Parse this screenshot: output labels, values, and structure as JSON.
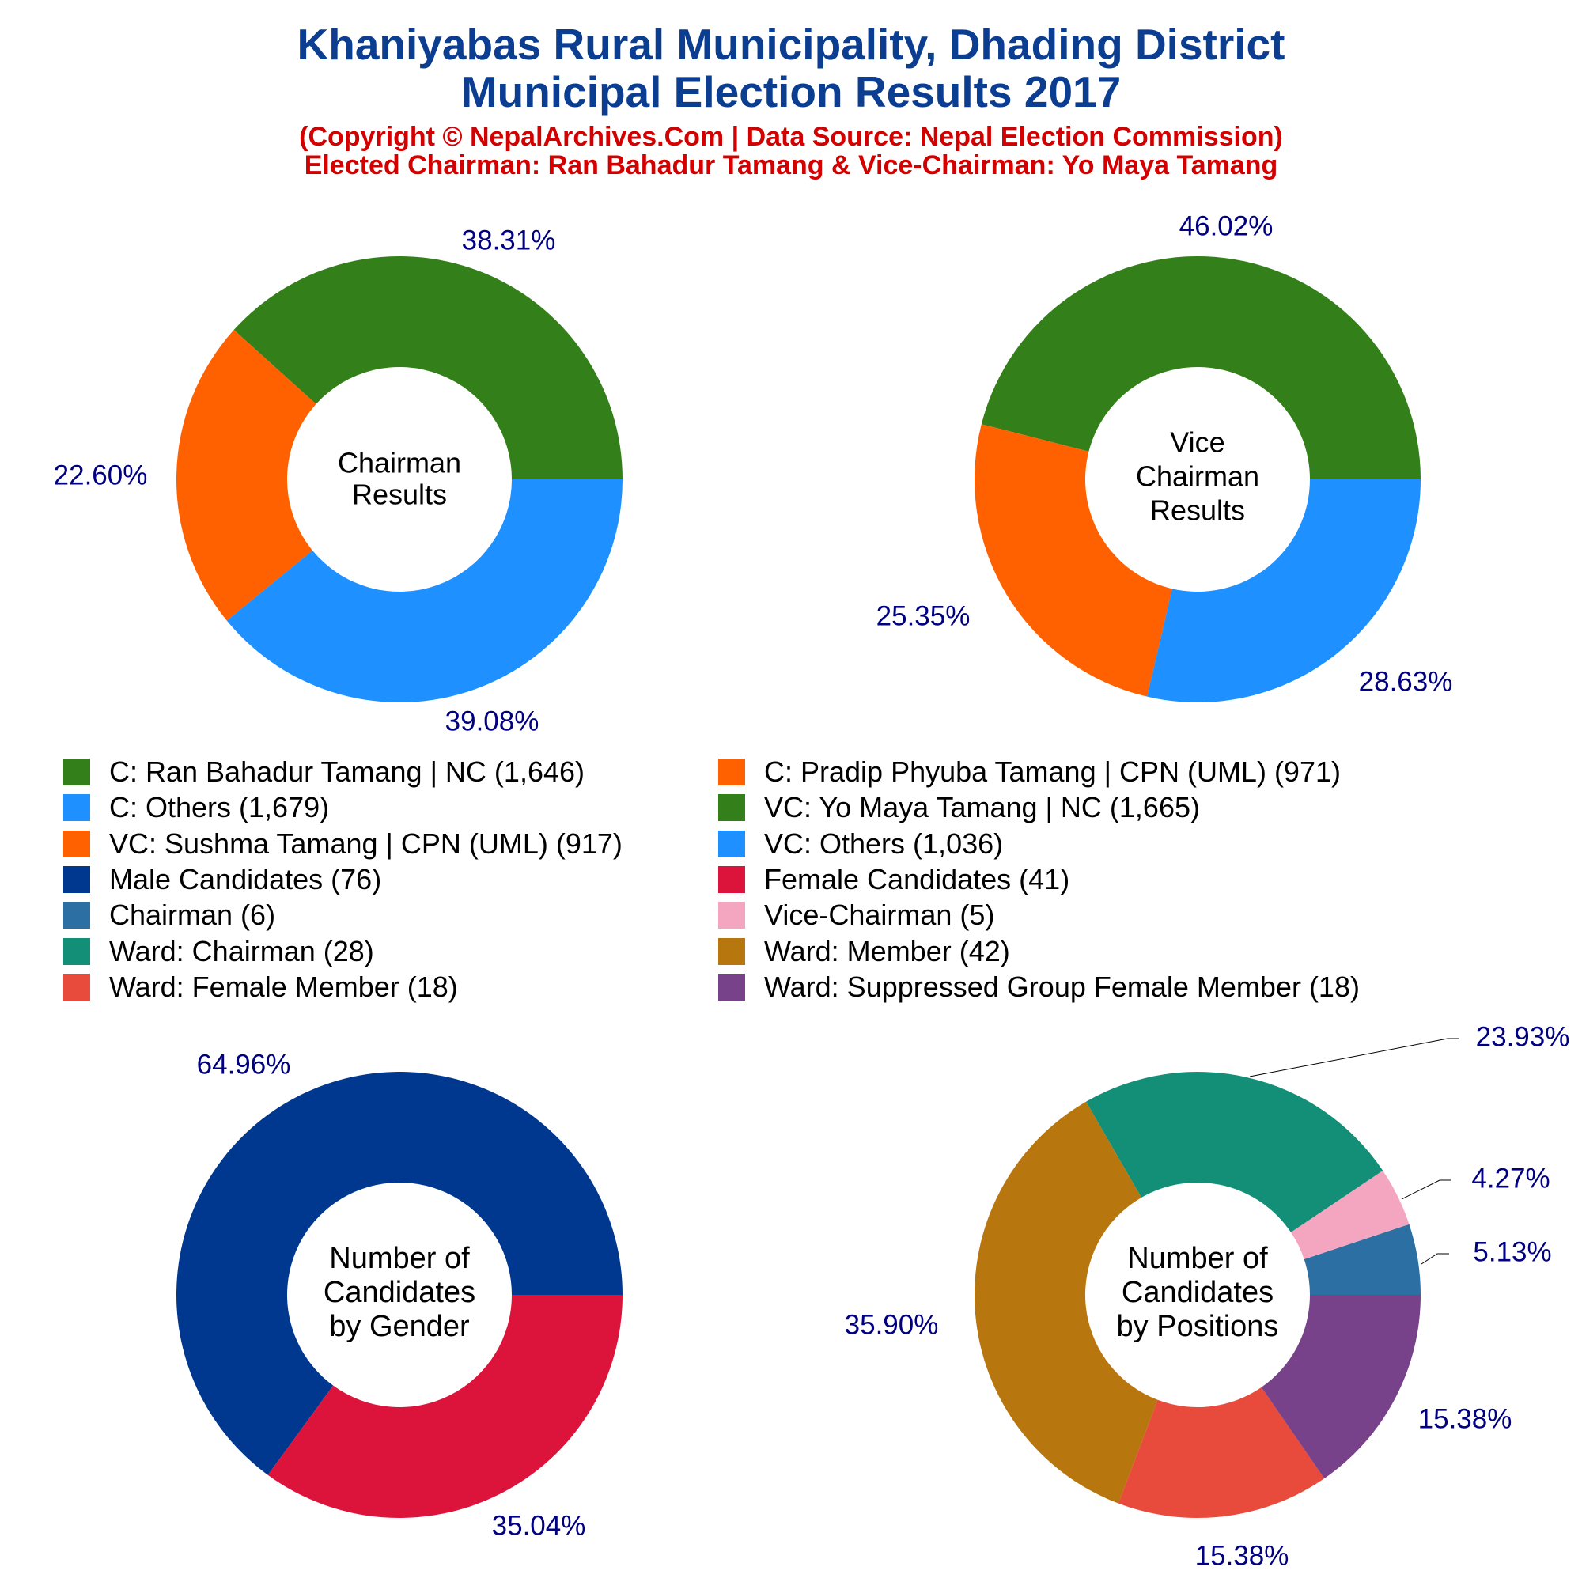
{
  "header": {
    "title_line1": "Khaniyabas Rural Municipality, Dhading District",
    "title_line2": "Municipal Election Results 2017",
    "subtitle_line1": "(Copyright © NepalArchives.Com | Data Source: Nepal Election Commission)",
    "subtitle_line2": "Elected Chairman: Ran Bahadur Tamang & Vice-Chairman: Yo Maya Tamang"
  },
  "colors": {
    "title": "#0b3d91",
    "subtitle": "#d40000",
    "pct_label": "#000080"
  },
  "chart_data": [
    {
      "type": "pie",
      "center_label": [
        "Chairman",
        "Results"
      ],
      "slices": [
        {
          "label": "C: Ran Bahadur Tamang | NC",
          "value": 1646,
          "pct": "38.31%",
          "color": "#33801a"
        },
        {
          "label": "C: Pradip Phyuba Tamang | CPN (UML)",
          "value": 971,
          "pct": "22.60%",
          "color": "#ff6100"
        },
        {
          "label": "C: Others",
          "value": 1679,
          "pct": "39.08%",
          "color": "#1e90ff"
        }
      ]
    },
    {
      "type": "pie",
      "center_label": [
        "Vice",
        "Chairman",
        "Results"
      ],
      "slices": [
        {
          "label": "VC: Yo Maya Tamang | NC",
          "value": 1665,
          "pct": "46.02%",
          "color": "#33801a"
        },
        {
          "label": "VC: Sushma Tamang | CPN (UML)",
          "value": 917,
          "pct": "25.35%",
          "color": "#ff6100"
        },
        {
          "label": "VC: Others",
          "value": 1036,
          "pct": "28.63%",
          "color": "#1e90ff"
        }
      ]
    },
    {
      "type": "pie",
      "center_label": [
        "Number of",
        "Candidates",
        "by Gender"
      ],
      "slices": [
        {
          "label": "Male Candidates",
          "value": 76,
          "pct": "64.96%",
          "color": "#00388f"
        },
        {
          "label": "Female Candidates",
          "value": 41,
          "pct": "35.04%",
          "color": "#dc143c"
        }
      ]
    },
    {
      "type": "pie",
      "center_label": [
        "Number of",
        "Candidates",
        "by Positions"
      ],
      "slices": [
        {
          "label": "Ward: Chairman",
          "value": 28,
          "pct": "23.93%",
          "color": "#138f78"
        },
        {
          "label": "Vice-Chairman",
          "value": 5,
          "pct": "4.27%",
          "color": "#f4a6c1"
        },
        {
          "label": "Chairman",
          "value": 6,
          "pct": "5.13%",
          "color": "#2b6fa3"
        },
        {
          "label": "Ward: Suppressed Group Female Member",
          "value": 18,
          "pct": "15.38%",
          "color": "#77428a"
        },
        {
          "label": "Ward: Female Member",
          "value": 18,
          "pct": "15.38%",
          "color": "#e84a3c"
        },
        {
          "label": "Ward: Member",
          "value": 42,
          "pct": "35.90%",
          "color": "#b8760f"
        }
      ]
    }
  ],
  "legend": [
    {
      "text": "C: Ran Bahadur Tamang | NC (1,646)",
      "color": "#33801a"
    },
    {
      "text": "C: Pradip Phyuba Tamang | CPN (UML) (971)",
      "color": "#ff6100"
    },
    {
      "text": "C: Others (1,679)",
      "color": "#1e90ff"
    },
    {
      "text": "VC: Yo Maya Tamang | NC (1,665)",
      "color": "#33801a"
    },
    {
      "text": "VC: Sushma Tamang | CPN (UML) (917)",
      "color": "#ff6100"
    },
    {
      "text": "VC: Others (1,036)",
      "color": "#1e90ff"
    },
    {
      "text": "Male Candidates (76)",
      "color": "#00388f"
    },
    {
      "text": "Female Candidates (41)",
      "color": "#dc143c"
    },
    {
      "text": "Chairman (6)",
      "color": "#2b6fa3"
    },
    {
      "text": "Vice-Chairman (5)",
      "color": "#f4a6c1"
    },
    {
      "text": "Ward: Chairman (28)",
      "color": "#138f78"
    },
    {
      "text": "Ward: Member (42)",
      "color": "#b8760f"
    },
    {
      "text": "Ward: Female Member (18)",
      "color": "#e84a3c"
    },
    {
      "text": "Ward: Suppressed Group Female Member (18)",
      "color": "#77428a"
    }
  ]
}
